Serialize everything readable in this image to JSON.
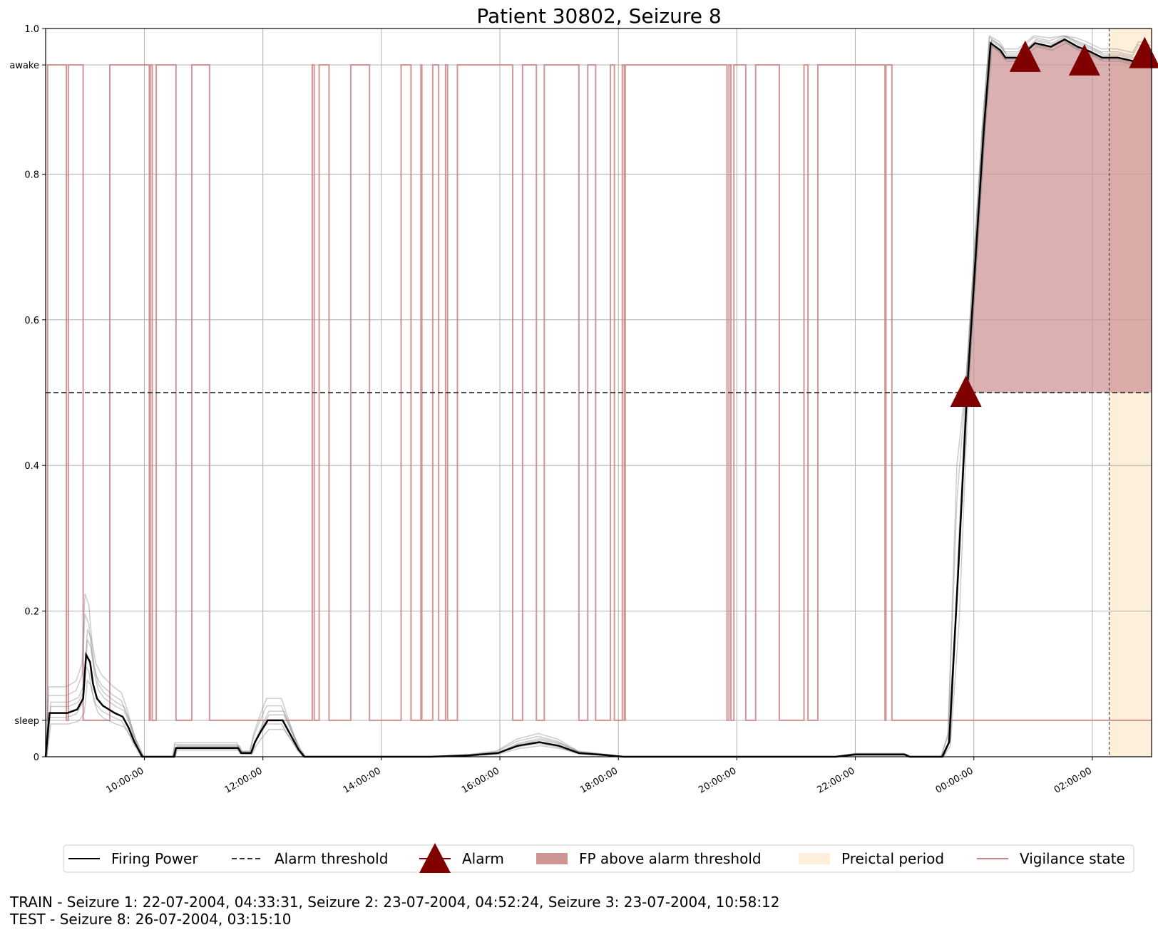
{
  "chart_data": {
    "type": "line",
    "title": "Patient 30802, Seizure 8",
    "xlabel": "",
    "ylabel": "",
    "x_type": "time",
    "x_start": "08:20:00",
    "x_end": "03:00:00",
    "x_ticks": [
      "10:00:00",
      "12:00:00",
      "14:00:00",
      "16:00:00",
      "18:00:00",
      "20:00:00",
      "22:00:00",
      "00:00:00",
      "02:00:00"
    ],
    "ylim": [
      0,
      1.0
    ],
    "y_ticks": [
      {
        "value": 0,
        "label": "0"
      },
      {
        "value": 0.05,
        "label": "sleep"
      },
      {
        "value": 0.2,
        "label": "0.2"
      },
      {
        "value": 0.4,
        "label": "0.4"
      },
      {
        "value": 0.6,
        "label": "0.6"
      },
      {
        "value": 0.8,
        "label": "0.8"
      },
      {
        "value": 0.95,
        "label": "awake"
      },
      {
        "value": 1.0,
        "label": "1.0"
      }
    ],
    "grid": true,
    "alarm_threshold": 0.5,
    "preictal_period": {
      "start": "02:17:00",
      "end": "03:00:00"
    },
    "firing_power": [
      [
        "08:20:00",
        0.0
      ],
      [
        "08:24:00",
        0.06
      ],
      [
        "08:42:00",
        0.06
      ],
      [
        "08:52:00",
        0.065
      ],
      [
        "08:58:00",
        0.08
      ],
      [
        "09:01:00",
        0.14
      ],
      [
        "09:05:00",
        0.13
      ],
      [
        "09:08:00",
        0.1
      ],
      [
        "09:12:00",
        0.08
      ],
      [
        "09:18:00",
        0.07
      ],
      [
        "09:30:00",
        0.06
      ],
      [
        "09:38:00",
        0.055
      ],
      [
        "09:44:00",
        0.04
      ],
      [
        "09:50:00",
        0.02
      ],
      [
        "09:58:00",
        0.0
      ],
      [
        "10:30:00",
        0.0
      ],
      [
        "10:32:00",
        0.012
      ],
      [
        "11:35:00",
        0.012
      ],
      [
        "11:38:00",
        0.005
      ],
      [
        "11:48:00",
        0.005
      ],
      [
        "11:52:00",
        0.02
      ],
      [
        "11:58:00",
        0.035
      ],
      [
        "12:05:00",
        0.05
      ],
      [
        "12:20:00",
        0.05
      ],
      [
        "12:28:00",
        0.03
      ],
      [
        "12:36:00",
        0.01
      ],
      [
        "12:42:00",
        0.0
      ],
      [
        "14:50:00",
        0.0
      ],
      [
        "15:30:00",
        0.002
      ],
      [
        "15:58:00",
        0.005
      ],
      [
        "16:18:00",
        0.015
      ],
      [
        "16:40:00",
        0.02
      ],
      [
        "17:00:00",
        0.015
      ],
      [
        "17:20:00",
        0.005
      ],
      [
        "17:50:00",
        0.002
      ],
      [
        "18:05:00",
        0.0
      ],
      [
        "21:40:00",
        0.0
      ],
      [
        "22:00:00",
        0.003
      ],
      [
        "22:50:00",
        0.003
      ],
      [
        "22:55:00",
        0.0
      ],
      [
        "23:28:00",
        0.0
      ],
      [
        "23:35:00",
        0.02
      ],
      [
        "23:44:00",
        0.25
      ],
      [
        "23:53:00",
        0.5
      ],
      [
        "00:10:00",
        0.86
      ],
      [
        "00:17:00",
        0.98
      ],
      [
        "00:27:00",
        0.97
      ],
      [
        "00:32:00",
        0.96
      ],
      [
        "00:46:00",
        0.96
      ],
      [
        "01:02:00",
        0.98
      ],
      [
        "01:18:00",
        0.975
      ],
      [
        "01:32:00",
        0.985
      ],
      [
        "01:45:00",
        0.975
      ],
      [
        "01:55:00",
        0.97
      ],
      [
        "02:10:00",
        0.96
      ],
      [
        "02:26:00",
        0.96
      ],
      [
        "02:42:00",
        0.955
      ],
      [
        "02:48:00",
        0.97
      ],
      [
        "03:00:00",
        0.965
      ]
    ],
    "alarms": [
      {
        "time": "23:52:00",
        "value": 0.5
      },
      {
        "time": "00:52:00",
        "value": 0.96
      },
      {
        "time": "01:52:00",
        "value": 0.955
      },
      {
        "time": "02:53:00",
        "value": 0.965
      }
    ],
    "vigilance_state": [
      [
        "08:20:00",
        "sleep"
      ],
      [
        "08:22:00",
        "awake"
      ],
      [
        "08:41:00",
        "sleep"
      ],
      [
        "08:43:00",
        "awake"
      ],
      [
        "08:58:00",
        "sleep"
      ],
      [
        "09:25:00",
        "awake"
      ],
      [
        "10:05:00",
        "sleep"
      ],
      [
        "10:06:00",
        "awake"
      ],
      [
        "10:08:00",
        "sleep"
      ],
      [
        "10:12:00",
        "awake"
      ],
      [
        "10:32:00",
        "sleep"
      ],
      [
        "10:48:00",
        "awake"
      ],
      [
        "11:06:00",
        "sleep"
      ],
      [
        "12:50:00",
        "awake"
      ],
      [
        "12:52:00",
        "sleep"
      ],
      [
        "12:57:00",
        "awake"
      ],
      [
        "13:07:00",
        "sleep"
      ],
      [
        "13:29:00",
        "awake"
      ],
      [
        "13:48:00",
        "sleep"
      ],
      [
        "14:20:00",
        "awake"
      ],
      [
        "14:30:00",
        "sleep"
      ],
      [
        "14:40:00",
        "awake"
      ],
      [
        "14:41:00",
        "sleep"
      ],
      [
        "14:52:00",
        "awake"
      ],
      [
        "14:58:00",
        "sleep"
      ],
      [
        "15:05:00",
        "awake"
      ],
      [
        "15:07:00",
        "sleep"
      ],
      [
        "15:17:00",
        "awake"
      ],
      [
        "16:13:00",
        "sleep"
      ],
      [
        "16:23:00",
        "awake"
      ],
      [
        "16:37:00",
        "sleep"
      ],
      [
        "16:45:00",
        "awake"
      ],
      [
        "17:20:00",
        "sleep"
      ],
      [
        "17:29:00",
        "awake"
      ],
      [
        "17:37:00",
        "sleep"
      ],
      [
        "17:52:00",
        "awake"
      ],
      [
        "17:56:00",
        "sleep"
      ],
      [
        "18:04:00",
        "awake"
      ],
      [
        "18:06:00",
        "sleep"
      ],
      [
        "18:07:00",
        "awake"
      ],
      [
        "19:50:00",
        "sleep"
      ],
      [
        "19:52:00",
        "awake"
      ],
      [
        "19:54:00",
        "sleep"
      ],
      [
        "19:57:00",
        "awake"
      ],
      [
        "20:09:00",
        "sleep"
      ],
      [
        "20:19:00",
        "awake"
      ],
      [
        "20:43:00",
        "sleep"
      ],
      [
        "21:08:00",
        "awake"
      ],
      [
        "21:12:00",
        "sleep"
      ],
      [
        "21:22:00",
        "awake"
      ],
      [
        "22:30:00",
        "sleep"
      ],
      [
        "22:31:00",
        "awake"
      ],
      [
        "22:37:00",
        "sleep"
      ],
      [
        "23:16:00",
        "sleep"
      ],
      [
        "03:00:00",
        "sleep"
      ]
    ],
    "legend": {
      "placement": "bottom",
      "entries": [
        "Firing Power",
        "Alarm threshold",
        "Alarm",
        "FP above alarm threshold",
        "Preictal period",
        "Vigilance state"
      ]
    },
    "colors": {
      "firing_power": "#000000",
      "threshold": "#333333",
      "alarm": "#800000",
      "fp_fill": "#cf9595",
      "preictal": "#fdefd9",
      "vigilance": "#c98585",
      "grid": "#b0b0b0"
    }
  },
  "footer": {
    "train_line": "TRAIN - Seizure 1: 22-07-2004, 04:33:31, Seizure 2: 23-07-2004, 04:52:24, Seizure 3: 23-07-2004, 10:58:12",
    "test_line": "TEST - Seizure 8: 26-07-2004, 03:15:10"
  }
}
